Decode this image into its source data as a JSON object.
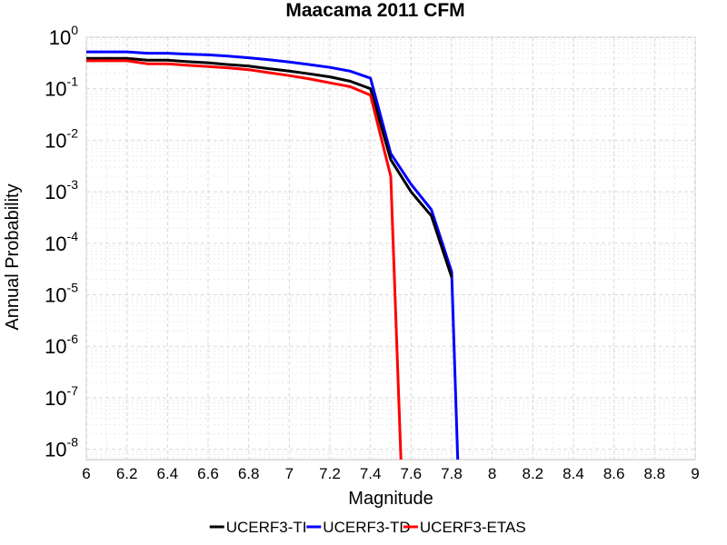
{
  "chart_data": {
    "type": "line",
    "title": "Maacama 2011 CFM",
    "xlabel": "Magnitude",
    "ylabel": "Annual Probability",
    "xlim": [
      6,
      9
    ],
    "ylim_log10": [
      -8.2,
      0
    ],
    "yscale": "log",
    "grid": true,
    "legend_position": "bottom",
    "x_ticks": [
      "6",
      "6.2",
      "6.4",
      "6.6",
      "6.8",
      "7",
      "7.2",
      "7.4",
      "7.6",
      "7.8",
      "8",
      "8.2",
      "8.4",
      "8.6",
      "8.8",
      "9"
    ],
    "y_ticks": [
      {
        "base": "10",
        "exp": "0"
      },
      {
        "base": "10",
        "exp": "-1"
      },
      {
        "base": "10",
        "exp": "-2"
      },
      {
        "base": "10",
        "exp": "-3"
      },
      {
        "base": "10",
        "exp": "-4"
      },
      {
        "base": "10",
        "exp": "-5"
      },
      {
        "base": "10",
        "exp": "-6"
      },
      {
        "base": "10",
        "exp": "-7"
      },
      {
        "base": "10",
        "exp": "-8"
      }
    ],
    "series": [
      {
        "name": "UCERF3-TD",
        "color": "#0000ff",
        "x": [
          6.0,
          6.2,
          6.3,
          6.4,
          6.5,
          6.6,
          6.7,
          6.8,
          6.9,
          7.0,
          7.1,
          7.2,
          7.3,
          7.4,
          7.5,
          7.6,
          7.7,
          7.8,
          7.83
        ],
        "y": [
          0.52,
          0.52,
          0.49,
          0.49,
          0.47,
          0.455,
          0.43,
          0.4,
          0.365,
          0.33,
          0.295,
          0.26,
          0.22,
          0.16,
          0.0055,
          0.0014,
          0.00045,
          2.8e-05,
          5.5e-09
        ]
      },
      {
        "name": "UCERF3-TI",
        "color": "#000000",
        "x": [
          6.0,
          6.2,
          6.3,
          6.4,
          6.5,
          6.6,
          6.7,
          6.8,
          6.9,
          7.0,
          7.1,
          7.2,
          7.3,
          7.4,
          7.5,
          7.6,
          7.7,
          7.8
        ],
        "y": [
          0.39,
          0.39,
          0.36,
          0.36,
          0.335,
          0.32,
          0.295,
          0.275,
          0.245,
          0.22,
          0.195,
          0.17,
          0.14,
          0.1,
          0.0042,
          0.001,
          0.00034,
          2.2e-05
        ]
      },
      {
        "name": "UCERF3-ETAS",
        "color": "#ff0000",
        "x": [
          6.0,
          6.2,
          6.3,
          6.4,
          6.5,
          6.6,
          6.7,
          6.8,
          6.9,
          7.0,
          7.1,
          7.2,
          7.3,
          7.4,
          7.5,
          7.55
        ],
        "y": [
          0.35,
          0.35,
          0.305,
          0.305,
          0.285,
          0.27,
          0.255,
          0.235,
          0.205,
          0.18,
          0.155,
          0.13,
          0.11,
          0.075,
          0.002,
          5.5e-09
        ]
      }
    ],
    "legend": [
      {
        "name": "UCERF3-TI",
        "color": "#000000"
      },
      {
        "name": "UCERF3-TD",
        "color": "#0000ff"
      },
      {
        "name": "UCERF3-ETAS",
        "color": "#ff0000"
      }
    ]
  }
}
